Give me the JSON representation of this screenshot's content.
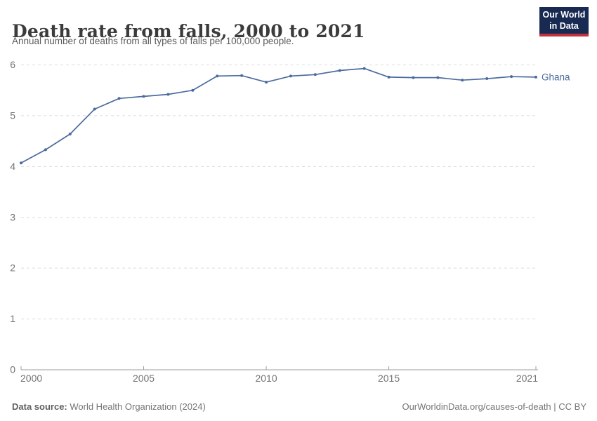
{
  "header": {
    "title": "Death rate from falls, 2000 to 2021",
    "subtitle": "Annual number of deaths from all types of falls per 100,000 people."
  },
  "logo": {
    "line1": "Our World",
    "line2": "in Data"
  },
  "chart_data": {
    "type": "line",
    "title": "Death rate from falls, 2000 to 2021",
    "subtitle": "Annual number of deaths from all types of falls per 100,000 people.",
    "x": [
      2000,
      2001,
      2002,
      2003,
      2004,
      2005,
      2006,
      2007,
      2008,
      2009,
      2010,
      2011,
      2012,
      2013,
      2014,
      2015,
      2016,
      2017,
      2018,
      2019,
      2020,
      2021
    ],
    "series": [
      {
        "name": "Ghana",
        "color": "#4C6B9E",
        "values": [
          4.07,
          4.33,
          4.64,
          5.13,
          5.34,
          5.38,
          5.42,
          5.5,
          5.78,
          5.79,
          5.66,
          5.78,
          5.81,
          5.89,
          5.93,
          5.76,
          5.75,
          5.75,
          5.7,
          5.73,
          5.77,
          5.76
        ]
      }
    ],
    "x_ticks": [
      2000,
      2005,
      2010,
      2015,
      2021
    ],
    "y_ticks": [
      0,
      1,
      2,
      3,
      4,
      5,
      6
    ],
    "xlim": [
      2000,
      2021
    ],
    "ylim": [
      0,
      6
    ],
    "grid": "horizontal-dashed",
    "legend_position": "end-of-line"
  },
  "footer": {
    "source_label": "Data source:",
    "source_value": " World Health Organization (2024)",
    "credit": "OurWorldinData.org/causes-of-death | CC BY"
  },
  "colors": {
    "line": "#4C6B9E",
    "grid": "#dcdcdc",
    "axis": "#9e9e9e",
    "tick_label": "#737373",
    "logo_bg": "#182A52",
    "logo_red": "#C5303E"
  }
}
